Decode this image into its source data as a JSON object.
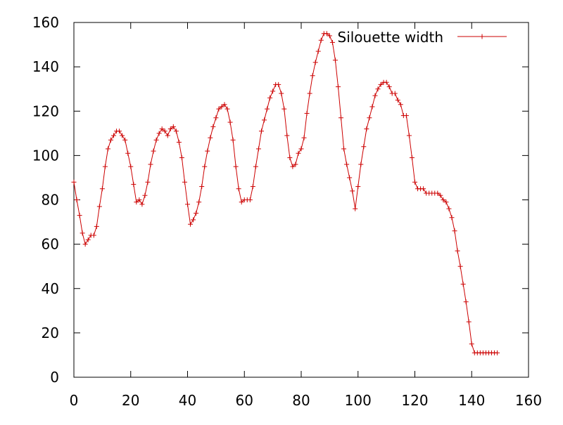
{
  "chart_data": {
    "type": "line",
    "title": "",
    "xlabel": "",
    "ylabel": "",
    "xlim": [
      0,
      160
    ],
    "ylim": [
      0,
      160
    ],
    "x_ticks": [
      0,
      20,
      40,
      60,
      80,
      100,
      120,
      140,
      160
    ],
    "y_ticks": [
      0,
      20,
      40,
      60,
      80,
      100,
      120,
      140,
      160
    ],
    "grid": false,
    "legend_position": "top-right",
    "series": [
      {
        "name": "Silouette width",
        "color": "#cc0000",
        "marker": "plus",
        "x": [
          0,
          1,
          2,
          3,
          4,
          5,
          6,
          7,
          8,
          9,
          10,
          11,
          12,
          13,
          14,
          15,
          16,
          17,
          18,
          19,
          20,
          21,
          22,
          23,
          24,
          25,
          26,
          27,
          28,
          29,
          30,
          31,
          32,
          33,
          34,
          35,
          36,
          37,
          38,
          39,
          40,
          41,
          42,
          43,
          44,
          45,
          46,
          47,
          48,
          49,
          50,
          51,
          52,
          53,
          54,
          55,
          56,
          57,
          58,
          59,
          60,
          61,
          62,
          63,
          64,
          65,
          66,
          67,
          68,
          69,
          70,
          71,
          72,
          73,
          74,
          75,
          76,
          77,
          78,
          79,
          80,
          81,
          82,
          83,
          84,
          85,
          86,
          87,
          88,
          89,
          90,
          91,
          92,
          93,
          94,
          95,
          96,
          97,
          98,
          99,
          100,
          101,
          102,
          103,
          104,
          105,
          106,
          107,
          108,
          109,
          110,
          111,
          112,
          113,
          114,
          115,
          116,
          117,
          118,
          119,
          120,
          121,
          122,
          123,
          124,
          125,
          126,
          127,
          128,
          129,
          130,
          131,
          132,
          133,
          134,
          135,
          136,
          137,
          138,
          139,
          140,
          141,
          142,
          143,
          144,
          145,
          146,
          147,
          148,
          149
        ],
        "y": [
          88,
          80,
          73,
          65,
          60,
          62,
          64,
          64,
          68,
          77,
          85,
          95,
          103,
          107,
          109,
          111,
          111,
          109,
          107,
          101,
          95,
          87,
          79,
          80,
          78,
          82,
          88,
          96,
          102,
          107,
          110,
          112,
          111,
          109,
          112,
          113,
          111,
          106,
          99,
          88,
          78,
          69,
          71,
          74,
          79,
          86,
          95,
          102,
          108,
          113,
          117,
          121,
          122,
          123,
          121,
          115,
          107,
          95,
          85,
          79,
          80,
          80,
          80,
          86,
          95,
          103,
          111,
          116,
          121,
          126,
          129,
          132,
          132,
          128,
          121,
          109,
          99,
          95,
          96,
          101,
          103,
          108,
          119,
          128,
          136,
          142,
          147,
          152,
          155,
          155,
          154,
          151,
          143,
          131,
          117,
          103,
          96,
          90,
          84,
          76,
          86,
          96,
          104,
          112,
          117,
          122,
          127,
          130,
          132,
          133,
          133,
          131,
          128,
          128,
          125,
          123,
          118,
          118,
          109,
          99,
          88,
          85,
          85,
          85,
          83,
          83,
          83,
          83,
          83,
          82,
          80,
          79,
          76,
          72,
          66,
          57,
          50,
          42,
          34,
          25,
          15,
          11,
          11,
          11,
          11,
          11,
          11,
          11,
          11,
          11
        ]
      }
    ]
  }
}
